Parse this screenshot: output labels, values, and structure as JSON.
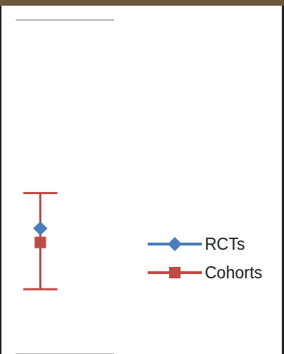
{
  "chart_data": {
    "type": "scatter",
    "series": [
      {
        "name": "RCTs",
        "color": "#4a7ebb",
        "marker": "diamond",
        "x": [
          0.25
        ],
        "values": [
          1.88
        ]
      },
      {
        "name": "Cohorts",
        "color": "#be4b48",
        "marker": "square",
        "x": [
          0.25
        ],
        "values": [
          1.67
        ],
        "error_low": [
          0.97
        ],
        "error_high": [
          2.41
        ]
      }
    ],
    "xlim": [
      0,
      1
    ],
    "xticks": [],
    "ylim": [
      0,
      5
    ],
    "yticks": [
      0,
      1,
      2,
      3,
      4,
      5
    ],
    "grid": true,
    "tick_labels": false,
    "legend": "right"
  }
}
